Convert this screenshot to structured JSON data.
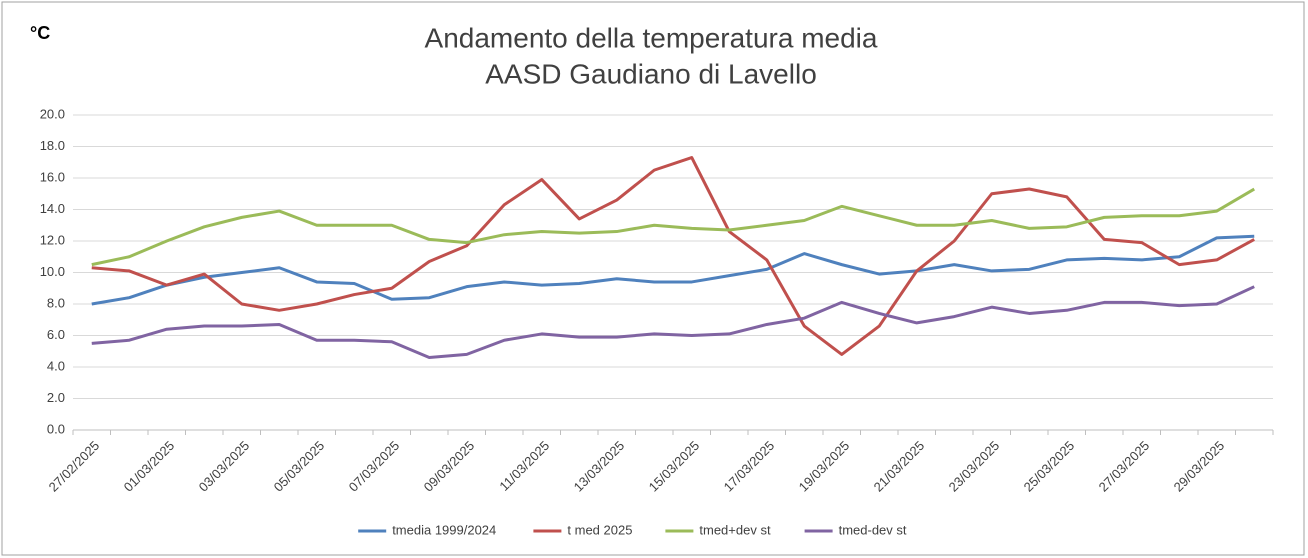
{
  "chart_data": {
    "type": "line",
    "title": [
      "Andamento della temperatura media",
      "AASD Gaudiano di Lavello"
    ],
    "y_label": "°C",
    "categories": [
      "27/02/2025",
      null,
      "01/03/2025",
      null,
      "03/03/2025",
      null,
      "05/03/2025",
      null,
      "07/03/2025",
      null,
      "09/03/2025",
      null,
      "11/03/2025",
      null,
      "13/03/2025",
      null,
      "15/03/2025",
      null,
      "17/03/2025",
      null,
      "19/03/2025",
      null,
      "21/03/2025",
      null,
      "23/03/2025",
      null,
      "25/03/2025",
      null,
      "27/03/2025",
      null,
      "29/03/2025",
      null
    ],
    "series": [
      {
        "name": "tmedia 1999/2024",
        "color": "#4f81bd",
        "values": [
          8.0,
          8.4,
          9.2,
          9.7,
          10.0,
          10.3,
          9.4,
          9.3,
          8.3,
          8.4,
          9.1,
          9.4,
          9.2,
          9.3,
          9.6,
          9.4,
          9.4,
          9.8,
          10.2,
          11.2,
          10.5,
          9.9,
          10.1,
          10.5,
          10.1,
          10.2,
          10.8,
          10.9,
          10.8,
          11.0,
          12.2,
          12.3
        ]
      },
      {
        "name": "t med 2025",
        "color": "#c0504d",
        "values": [
          10.3,
          10.1,
          9.2,
          9.9,
          8.0,
          7.6,
          8.0,
          8.6,
          9.0,
          10.7,
          11.7,
          14.3,
          15.9,
          13.4,
          14.6,
          16.5,
          17.3,
          12.6,
          10.8,
          6.6,
          4.8,
          6.6,
          10.1,
          12.0,
          15.0,
          15.3,
          14.8,
          12.1,
          11.9,
          10.5,
          10.8,
          12.1
        ]
      },
      {
        "name": "tmed+dev st",
        "color": "#9bbb59",
        "values": [
          10.5,
          11.0,
          12.0,
          12.9,
          13.5,
          13.9,
          13.0,
          13.0,
          13.0,
          12.1,
          11.9,
          12.4,
          12.6,
          12.5,
          12.6,
          13.0,
          12.8,
          12.7,
          13.0,
          13.3,
          14.2,
          13.6,
          13.0,
          13.0,
          13.3,
          12.8,
          12.9,
          13.5,
          13.6,
          13.6,
          13.9,
          15.3
        ]
      },
      {
        "name": "tmed-dev st",
        "color": "#8064a2",
        "values": [
          5.5,
          5.7,
          6.4,
          6.6,
          6.6,
          6.7,
          5.7,
          5.7,
          5.6,
          4.6,
          4.8,
          5.7,
          6.1,
          5.9,
          5.9,
          6.1,
          6.0,
          6.1,
          6.7,
          7.1,
          8.1,
          7.4,
          6.8,
          7.2,
          7.8,
          7.4,
          7.6,
          8.1,
          8.1,
          7.9,
          8.0,
          9.1
        ]
      }
    ],
    "ylim": [
      0,
      20
    ],
    "yticks": [
      {
        "value": 0,
        "label": "0.0"
      },
      {
        "value": 2,
        "label": "2.0"
      },
      {
        "value": 4,
        "label": "4.0"
      },
      {
        "value": 6,
        "label": "6.0"
      },
      {
        "value": 8,
        "label": "8.0"
      },
      {
        "value": 10,
        "label": "10.0"
      },
      {
        "value": 12,
        "label": "12.0"
      },
      {
        "value": 14,
        "label": "14.0"
      },
      {
        "value": 16,
        "label": "16.0"
      },
      {
        "value": 18,
        "label": "18.0"
      },
      {
        "value": 20,
        "label": "20.0"
      }
    ],
    "grid": true,
    "legend": "bottom"
  }
}
